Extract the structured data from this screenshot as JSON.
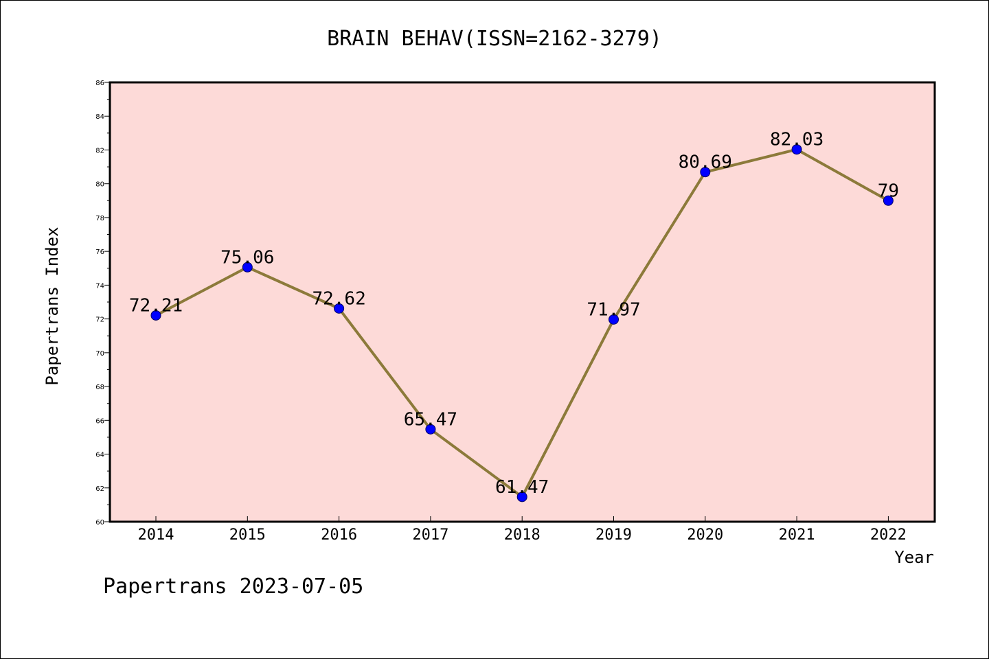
{
  "chart_data": {
    "type": "line",
    "title": "BRAIN BEHAV(ISSN=2162-3279)",
    "xlabel": "Year",
    "ylabel": "Papertrans Index",
    "categories": [
      "2014",
      "2015",
      "2016",
      "2017",
      "2018",
      "2019",
      "2020",
      "2021",
      "2022"
    ],
    "values": [
      72.21,
      75.06,
      72.62,
      65.47,
      61.47,
      71.97,
      80.69,
      82.03,
      79
    ],
    "data_labels": [
      "72.21",
      "75.06",
      "72.62",
      "65.47",
      "61.47",
      "71.97",
      "80.69",
      "82.03",
      "79"
    ],
    "ylim": [
      60,
      86
    ],
    "yticks": [
      "60",
      "62",
      "64",
      "66",
      "68",
      "70",
      "72",
      "74",
      "76",
      "78",
      "80",
      "82",
      "84",
      "86"
    ],
    "grid": false,
    "colors": {
      "plot_background": "#fddad8",
      "line": "#8c7a3a",
      "marker": "#0000ff"
    }
  },
  "footer": {
    "text": "Papertrans 2023-07-05"
  }
}
